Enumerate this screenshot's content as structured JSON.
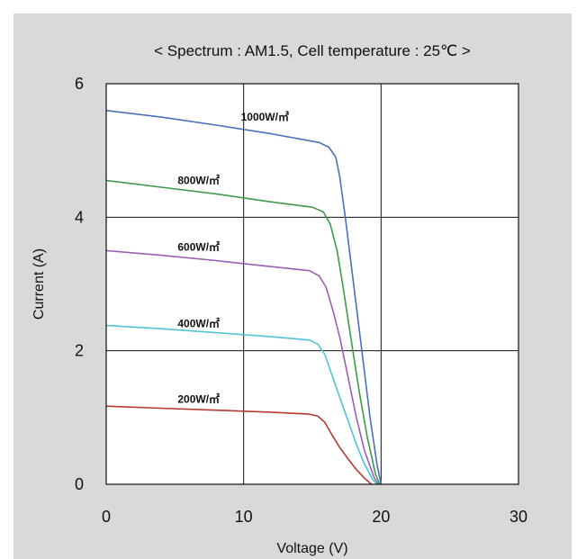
{
  "chart_data": {
    "type": "line",
    "title": "< Spectrum : AM1.5, Cell temperature : 25℃ >",
    "xlabel": "Voltage (V)",
    "ylabel": "Current  (A)",
    "xlim": [
      0,
      30
    ],
    "ylim": [
      0,
      6
    ],
    "xticks": [
      "0",
      "10",
      "20",
      "30"
    ],
    "yticks": [
      "0",
      "2",
      "4",
      "6"
    ],
    "grid": true,
    "background": "#d9d9d9",
    "plot_background": "#ffffff",
    "series": [
      {
        "name": "1000W/㎡",
        "color": "#4a6fc0",
        "label_at": [
          9.8,
          5.45
        ],
        "x": [
          0,
          4,
          8,
          12,
          15.5,
          16.2,
          16.7,
          17.0,
          17.4,
          18.0,
          18.6,
          19.2,
          19.7,
          20.0
        ],
        "y": [
          5.6,
          5.5,
          5.38,
          5.25,
          5.12,
          5.05,
          4.9,
          4.6,
          4.0,
          3.0,
          2.0,
          1.0,
          0.3,
          0
        ]
      },
      {
        "name": "800W/㎡",
        "color": "#3e9a4a",
        "label_at": [
          5.2,
          4.5
        ],
        "x": [
          0,
          4,
          8,
          12,
          15.0,
          15.8,
          16.3,
          16.8,
          17.2,
          17.8,
          18.4,
          19.0,
          19.6,
          19.9
        ],
        "y": [
          4.55,
          4.45,
          4.35,
          4.23,
          4.15,
          4.08,
          3.9,
          3.5,
          3.0,
          2.2,
          1.4,
          0.7,
          0.15,
          0
        ]
      },
      {
        "name": "600W/㎡",
        "color": "#9b5fb5",
        "label_at": [
          5.2,
          3.5
        ],
        "x": [
          0,
          4,
          8,
          12,
          14.8,
          15.5,
          16.0,
          16.5,
          17.0,
          17.6,
          18.2,
          18.8,
          19.5,
          19.8
        ],
        "y": [
          3.5,
          3.43,
          3.35,
          3.26,
          3.2,
          3.12,
          2.95,
          2.6,
          2.2,
          1.6,
          1.0,
          0.5,
          0.1,
          0
        ]
      },
      {
        "name": "400W/㎡",
        "color": "#4fc3d6",
        "label_at": [
          5.2,
          2.35
        ],
        "x": [
          0,
          4,
          8,
          12,
          14.8,
          15.4,
          15.9,
          16.4,
          17.0,
          17.6,
          18.2,
          18.8,
          19.4,
          19.7
        ],
        "y": [
          2.38,
          2.33,
          2.27,
          2.21,
          2.16,
          2.1,
          1.95,
          1.65,
          1.3,
          0.95,
          0.6,
          0.3,
          0.07,
          0
        ]
      },
      {
        "name": "200W/㎡",
        "color": "#b53a2e",
        "label_at": [
          5.2,
          1.22
        ],
        "x": [
          0,
          4,
          8,
          12,
          14.8,
          15.4,
          15.9,
          16.4,
          17.0,
          17.6,
          18.2,
          18.8,
          19.3
        ],
        "y": [
          1.17,
          1.14,
          1.11,
          1.08,
          1.05,
          1.02,
          0.93,
          0.75,
          0.55,
          0.38,
          0.22,
          0.09,
          0
        ]
      }
    ]
  }
}
